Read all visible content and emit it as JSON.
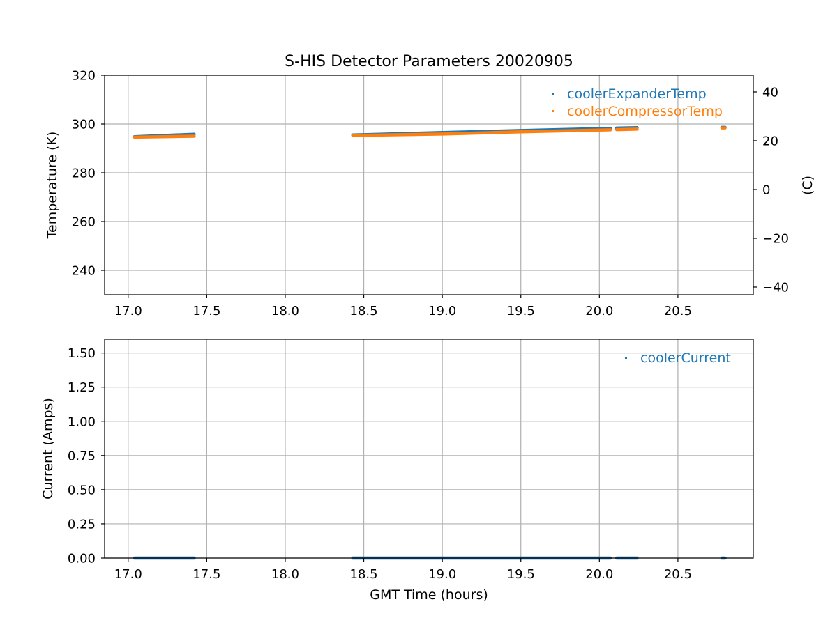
{
  "chart_data": [
    {
      "type": "scatter",
      "title": "S-HIS Detector Parameters 20020905",
      "xlabel": "",
      "ylabel": "Temperature (K)",
      "ylabel_right": "(C)",
      "xlim": [
        16.85,
        20.98
      ],
      "ylim": [
        230,
        320
      ],
      "ylim_right_celsius": [
        -43.15,
        46.85
      ],
      "x_ticks": [
        17.0,
        17.5,
        18.0,
        18.5,
        19.0,
        19.5,
        20.0,
        20.5
      ],
      "x_tick_labels": [
        "17.0",
        "17.5",
        "18.0",
        "18.5",
        "19.0",
        "19.5",
        "20.0",
        "20.5"
      ],
      "y_ticks": [
        240,
        260,
        280,
        300,
        320
      ],
      "y_tick_labels": [
        "240",
        "260",
        "280",
        "300",
        "320"
      ],
      "y_right_ticks": [
        -40,
        -20,
        0,
        20,
        40
      ],
      "y_right_tick_labels": [
        "−40",
        "−20",
        "0",
        "20",
        "40"
      ],
      "grid": true,
      "legend_position": "top-right",
      "series": [
        {
          "name": "coolerExpanderTemp",
          "color": "#1f77b4",
          "segments": [
            [
              [
                17.04,
                294.8
              ],
              [
                17.42,
                295.8
              ]
            ],
            [
              [
                18.43,
                295.5
              ],
              [
                19.0,
                296.5
              ],
              [
                19.5,
                297.3
              ],
              [
                20.07,
                298.2
              ]
            ],
            [
              [
                20.11,
                298.3
              ],
              [
                20.24,
                298.5
              ]
            ],
            [
              [
                20.78,
                298.6
              ],
              [
                20.8,
                298.6
              ]
            ]
          ]
        },
        {
          "name": "coolerCompressorTemp",
          "color": "#ff7f0e",
          "segments": [
            [
              [
                17.04,
                294.6
              ],
              [
                17.42,
                295.0
              ]
            ],
            [
              [
                18.43,
                295.3
              ],
              [
                19.0,
                295.9
              ],
              [
                19.5,
                296.8
              ],
              [
                20.07,
                297.6
              ]
            ],
            [
              [
                20.11,
                297.7
              ],
              [
                20.24,
                297.9
              ]
            ],
            [
              [
                20.78,
                298.4
              ],
              [
                20.8,
                298.4
              ]
            ]
          ]
        }
      ]
    },
    {
      "type": "scatter",
      "title": "",
      "xlabel": "GMT Time (hours)",
      "ylabel": "Current (Amps)",
      "xlim": [
        16.85,
        20.98
      ],
      "ylim": [
        0,
        1.6
      ],
      "x_ticks": [
        17.0,
        17.5,
        18.0,
        18.5,
        19.0,
        19.5,
        20.0,
        20.5
      ],
      "x_tick_labels": [
        "17.0",
        "17.5",
        "18.0",
        "18.5",
        "19.0",
        "19.5",
        "20.0",
        "20.5"
      ],
      "y_ticks": [
        0.0,
        0.25,
        0.5,
        0.75,
        1.0,
        1.25,
        1.5
      ],
      "y_tick_labels": [
        "0.00",
        "0.25",
        "0.50",
        "0.75",
        "1.00",
        "1.25",
        "1.50"
      ],
      "grid": true,
      "legend_position": "top-right",
      "series": [
        {
          "name": "coolerCurrent",
          "color": "#1f77b4",
          "segments": [
            [
              [
                17.04,
                0.0
              ],
              [
                17.42,
                0.0
              ]
            ],
            [
              [
                18.43,
                0.0
              ],
              [
                20.07,
                0.0
              ]
            ],
            [
              [
                20.11,
                0.0
              ],
              [
                20.24,
                0.0
              ]
            ],
            [
              [
                20.78,
                0.0
              ],
              [
                20.8,
                0.0
              ]
            ]
          ]
        }
      ]
    }
  ]
}
